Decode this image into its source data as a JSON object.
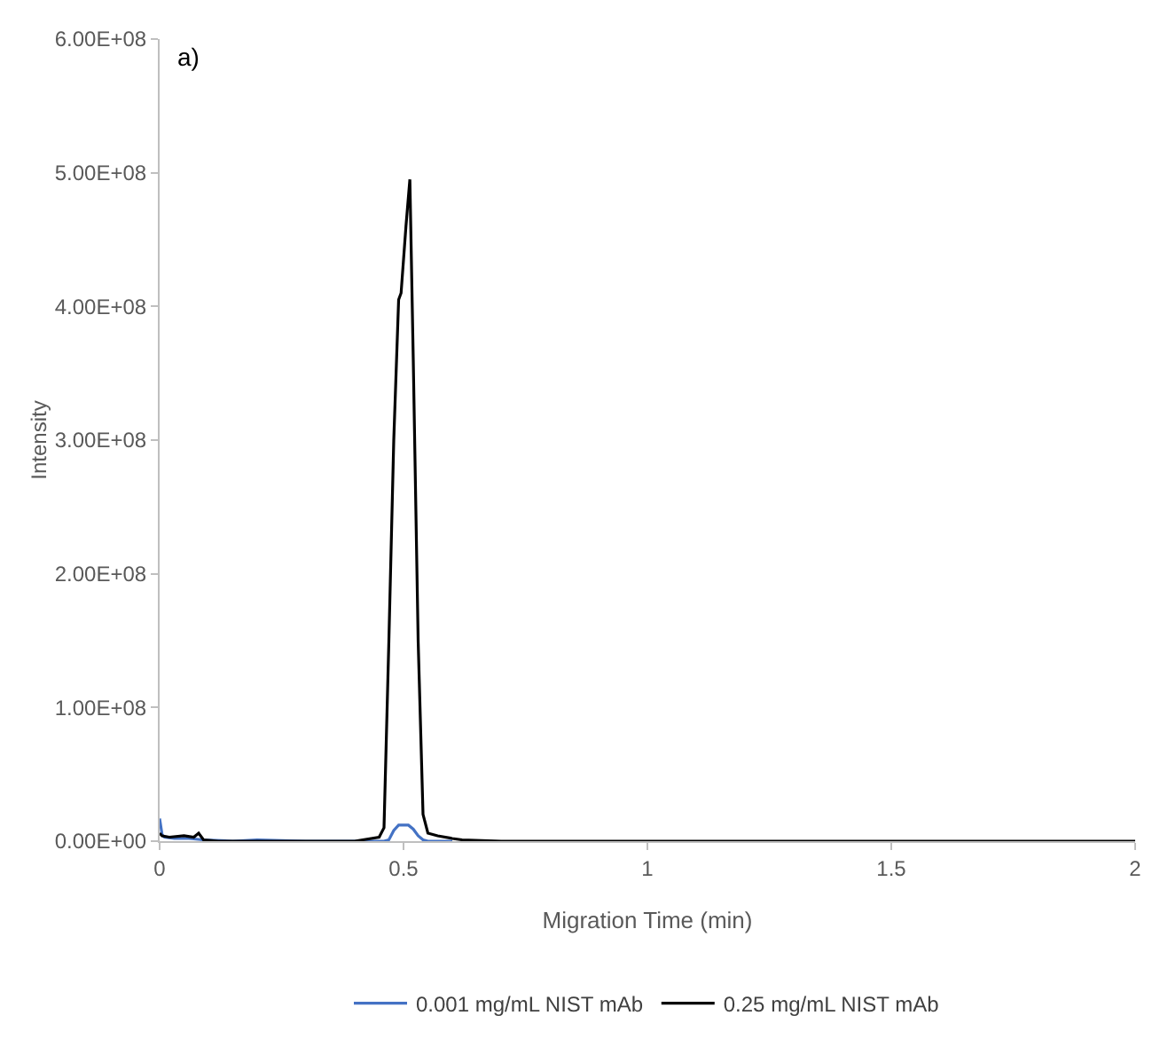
{
  "chart_data": {
    "type": "line",
    "xlabel": "Migration Time (min)",
    "ylabel": "Intensity",
    "annotations": [
      "a)"
    ],
    "xlim": [
      0,
      2
    ],
    "xticks": [
      0,
      {
        "value": 0.5,
        "label": "0.5"
      },
      1,
      {
        "value": 1.5,
        "label": "1.5"
      },
      2
    ],
    "ylim": [
      0,
      600000000
    ],
    "yticks": [
      {
        "value": 0,
        "label": "0.00E+00"
      },
      {
        "value": 100000000,
        "label": "1.00E+08"
      },
      {
        "value": 200000000,
        "label": "2.00E+08"
      },
      {
        "value": 300000000,
        "label": "3.00E+08"
      },
      {
        "value": 400000000,
        "label": "4.00E+08"
      },
      {
        "value": 500000000,
        "label": "5.00E+08"
      },
      {
        "value": 600000000,
        "label": "6.00E+08"
      }
    ],
    "grid": false,
    "legend": "bottom",
    "marker": "none",
    "line_style": "solid",
    "series": [
      {
        "name": "0.001 mg/mL NIST mAb",
        "color": "#4472c4",
        "x": [
          0,
          0.005,
          0.01,
          0.03,
          0.06,
          0.09,
          0.15,
          0.2,
          0.3,
          0.4,
          0.46,
          0.47,
          0.48,
          0.49,
          0.51,
          0.52,
          0.53,
          0.54,
          0.55,
          0.6
        ],
        "values": [
          17000000,
          5000000,
          3000000,
          2000000,
          2000000,
          1000000,
          0,
          1000000,
          0,
          0,
          0,
          1000000,
          8000000,
          12000000,
          12000000,
          9000000,
          4000000,
          1000000,
          0,
          0
        ]
      },
      {
        "name": "0.25 mg/mL NIST mAb",
        "color": "#000000",
        "x": [
          0,
          0.005,
          0.02,
          0.05,
          0.07,
          0.08,
          0.09,
          0.12,
          0.2,
          0.3,
          0.4,
          0.45,
          0.46,
          0.47,
          0.48,
          0.49,
          0.495,
          0.505,
          0.513,
          0.52,
          0.53,
          0.54,
          0.55,
          0.57,
          0.6,
          0.62,
          0.7,
          1,
          1.5,
          2
        ],
        "values": [
          6000000,
          4000000,
          3000000,
          4000000,
          3000000,
          6000000,
          1000000,
          0,
          0,
          0,
          0,
          3000000,
          10000000,
          150000000,
          300000000,
          405000000,
          410000000,
          460000000,
          495000000,
          360000000,
          150000000,
          20000000,
          6000000,
          4000000,
          2000000,
          1000000,
          0,
          0,
          0,
          0
        ]
      }
    ]
  }
}
